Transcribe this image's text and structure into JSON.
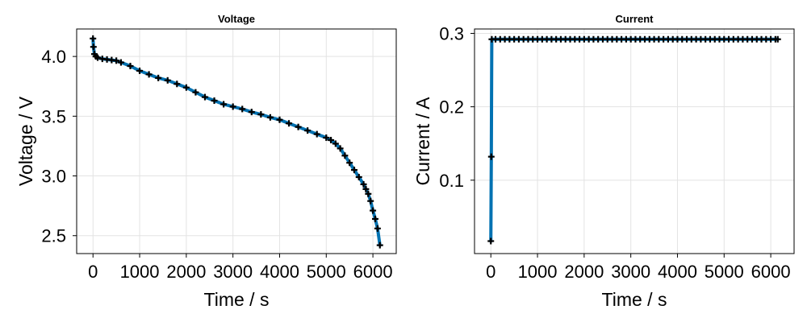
{
  "chart_data": [
    {
      "type": "line",
      "title": "Voltage",
      "xlabel": "Time / s",
      "ylabel": "Voltage / V",
      "xlim": [
        -350,
        6500
      ],
      "ylim": [
        2.35,
        4.23
      ],
      "xticks": [
        0,
        1000,
        2000,
        3000,
        4000,
        5000,
        6000
      ],
      "xtick_labels": [
        "0",
        "1000",
        "2000",
        "3000",
        "4000",
        "5000",
        "6000"
      ],
      "yticks": [
        2.5,
        3.0,
        3.5,
        4.0
      ],
      "ytick_labels": [
        "2.5",
        "3.0",
        "3.5",
        "4.0"
      ],
      "grid": true,
      "line_color": "#0072b2",
      "marker_color": "#000000",
      "marker": "plus",
      "series": [
        {
          "x": [
            0,
            10,
            30,
            60,
            100,
            200,
            300,
            400,
            500,
            600,
            800,
            1000,
            1200,
            1400,
            1600,
            1800,
            2000,
            2200,
            2400,
            2600,
            2800,
            3000,
            3200,
            3400,
            3600,
            3800,
            4000,
            4200,
            4400,
            4600,
            4800,
            5000,
            5100,
            5200,
            5300,
            5400,
            5500,
            5600,
            5700,
            5800,
            5850,
            5900,
            5950,
            6000,
            6050,
            6100,
            6150
          ],
          "y": [
            4.15,
            4.08,
            4.02,
            4.0,
            3.99,
            3.98,
            3.975,
            3.97,
            3.965,
            3.95,
            3.92,
            3.88,
            3.85,
            3.82,
            3.8,
            3.77,
            3.74,
            3.7,
            3.66,
            3.63,
            3.6,
            3.58,
            3.56,
            3.535,
            3.515,
            3.49,
            3.47,
            3.44,
            3.41,
            3.38,
            3.35,
            3.32,
            3.3,
            3.27,
            3.23,
            3.17,
            3.11,
            3.05,
            2.99,
            2.93,
            2.89,
            2.85,
            2.79,
            2.71,
            2.64,
            2.56,
            2.42
          ]
        }
      ]
    },
    {
      "type": "line",
      "title": "Current",
      "xlabel": "Time / s",
      "ylabel": "Current / A",
      "xlim": [
        -350,
        6500
      ],
      "ylim": [
        0.0,
        0.306
      ],
      "xticks": [
        0,
        1000,
        2000,
        3000,
        4000,
        5000,
        6000
      ],
      "xtick_labels": [
        "0",
        "1000",
        "2000",
        "3000",
        "4000",
        "5000",
        "6000"
      ],
      "yticks": [
        0.1,
        0.2,
        0.3
      ],
      "ytick_labels": [
        "0.1",
        "0.2",
        "0.3"
      ],
      "grid": true,
      "line_color": "#0072b2",
      "marker_color": "#000000",
      "marker": "plus",
      "series": [
        {
          "x": [
            0,
            10,
            20,
            100,
            200,
            300,
            400,
            500,
            600,
            700,
            800,
            900,
            1000,
            1100,
            1200,
            1300,
            1400,
            1500,
            1600,
            1700,
            1800,
            1900,
            2000,
            2100,
            2200,
            2300,
            2400,
            2500,
            2600,
            2700,
            2800,
            2900,
            3000,
            3100,
            3200,
            3300,
            3400,
            3500,
            3600,
            3700,
            3800,
            3900,
            4000,
            4100,
            4200,
            4300,
            4400,
            4500,
            4600,
            4700,
            4800,
            4900,
            5000,
            5100,
            5200,
            5300,
            5400,
            5500,
            5600,
            5700,
            5800,
            5900,
            6000,
            6100,
            6150
          ],
          "y": [
            0.017,
            0.132,
            0.292,
            0.292,
            0.292,
            0.292,
            0.292,
            0.292,
            0.292,
            0.292,
            0.292,
            0.292,
            0.292,
            0.292,
            0.292,
            0.292,
            0.292,
            0.292,
            0.292,
            0.292,
            0.292,
            0.292,
            0.292,
            0.292,
            0.292,
            0.292,
            0.292,
            0.292,
            0.292,
            0.292,
            0.292,
            0.292,
            0.292,
            0.292,
            0.292,
            0.292,
            0.292,
            0.292,
            0.292,
            0.292,
            0.292,
            0.292,
            0.292,
            0.292,
            0.292,
            0.292,
            0.292,
            0.292,
            0.292,
            0.292,
            0.292,
            0.292,
            0.292,
            0.292,
            0.292,
            0.292,
            0.292,
            0.292,
            0.292,
            0.292,
            0.292,
            0.292,
            0.292,
            0.292,
            0.292
          ]
        }
      ]
    }
  ]
}
